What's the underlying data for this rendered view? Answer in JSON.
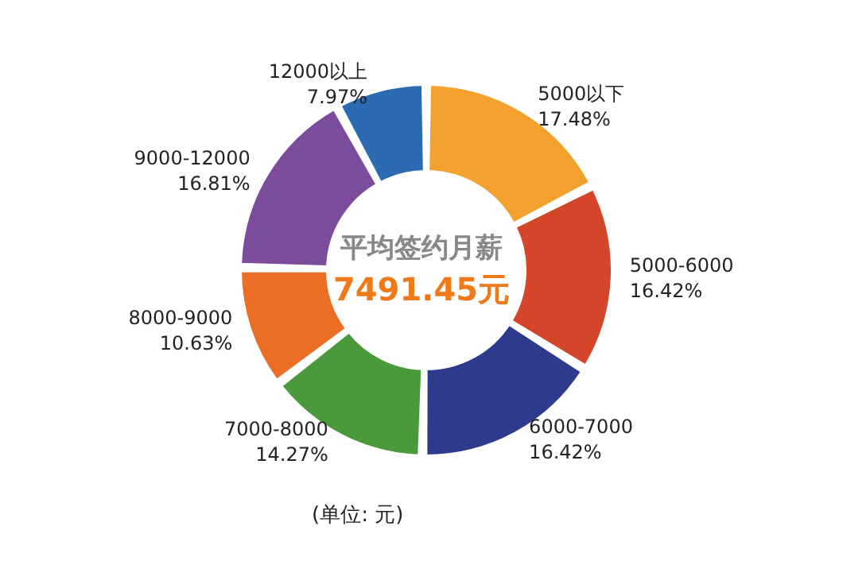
{
  "chart_data": {
    "type": "donut",
    "categories": [
      "5000以下",
      "5000-6000",
      "6000-7000",
      "7000-8000",
      "8000-9000",
      "9000-12000",
      "12000以上"
    ],
    "values": [
      17.48,
      16.42,
      16.42,
      14.27,
      10.63,
      16.81,
      7.97
    ],
    "value_labels": [
      "17.48%",
      "16.42%",
      "16.42%",
      "14.27%",
      "10.63%",
      "16.81%",
      "7.97%"
    ],
    "colors": [
      "#f2a22c",
      "#d4452a",
      "#2e3a8c",
      "#4a9a3c",
      "#ec6e24",
      "#7b4c9c",
      "#2a6bb2"
    ],
    "annotations": [
      "平均签约月薪",
      "7491.45元",
      "(单位: 元)"
    ]
  }
}
